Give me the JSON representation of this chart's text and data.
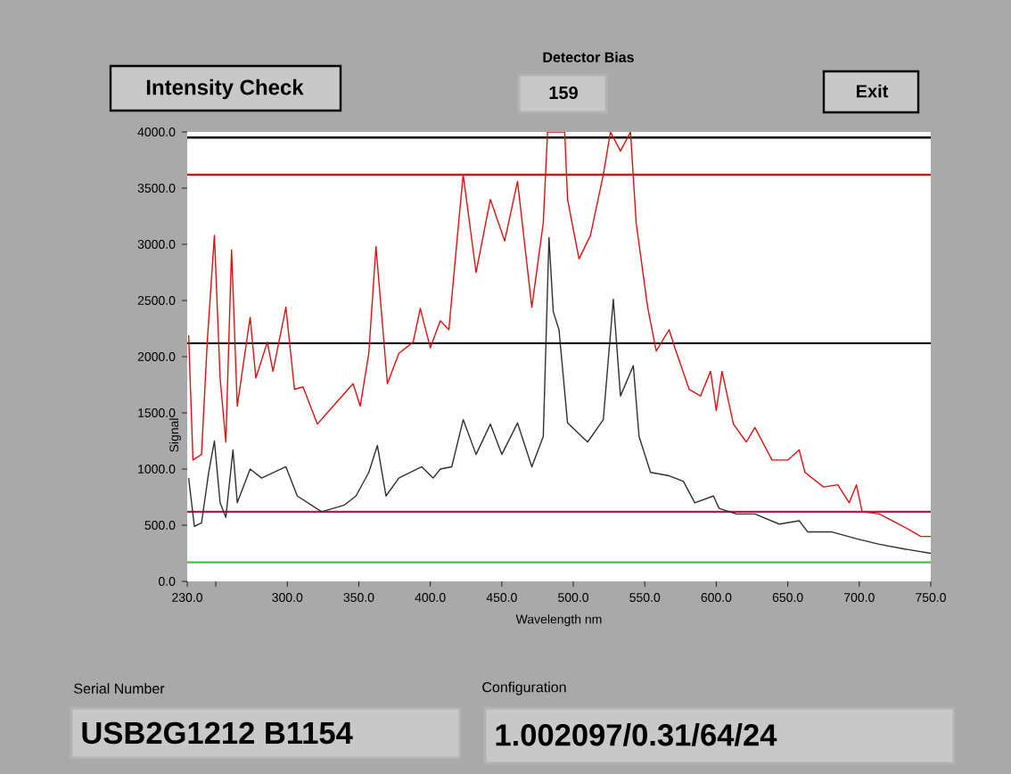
{
  "chart_data": {
    "type": "line",
    "xlabel": "Wavelength nm",
    "ylabel": "Signal",
    "xlim": [
      230,
      750
    ],
    "ylim": [
      0,
      4000
    ],
    "xticks": [
      {
        "value": 230,
        "label": "230.0"
      },
      {
        "value": 250,
        "label": null
      },
      {
        "value": 300,
        "label": "300.0"
      },
      {
        "value": 350,
        "label": "350.0"
      },
      {
        "value": 400,
        "label": "400.0"
      },
      {
        "value": 450,
        "label": "450.0"
      },
      {
        "value": 500,
        "label": "500.0"
      },
      {
        "value": 550,
        "label": "550.0"
      },
      {
        "value": 600,
        "label": "600.0"
      },
      {
        "value": 650,
        "label": "650.0"
      },
      {
        "value": 700,
        "label": "700.0"
      },
      {
        "value": 750,
        "label": "750.0"
      }
    ],
    "yticks": [
      {
        "value": 0,
        "label": "0.0"
      },
      {
        "value": 500,
        "label": "500.0"
      },
      {
        "value": 1000,
        "label": "1000.0"
      },
      {
        "value": 1500,
        "label": "1500.0"
      },
      {
        "value": 2000,
        "label": "2000.0"
      },
      {
        "value": 2500,
        "label": "2500.0"
      },
      {
        "value": 3000,
        "label": "3000.0"
      },
      {
        "value": 3500,
        "label": "3500.0"
      },
      {
        "value": 4000,
        "label": "4000.0"
      }
    ],
    "grid": false,
    "marker": "none",
    "line_style": "solid",
    "series": [
      {
        "color": "#e01010",
        "x": [
          231,
          234,
          240,
          244,
          249,
          253,
          257,
          261,
          265,
          274,
          278,
          286,
          290,
          299,
          305,
          311,
          321,
          332,
          346,
          351,
          357,
          362,
          370,
          378,
          388,
          393,
          400,
          407,
          413,
          419,
          423,
          432,
          442,
          452,
          461,
          471,
          479,
          482,
          494,
          496,
          504,
          512,
          521,
          526,
          533,
          540,
          544,
          552,
          558,
          567,
          571,
          581,
          589,
          596,
          600,
          604,
          612,
          621,
          627,
          639,
          650,
          658,
          662,
          675,
          685,
          693,
          698,
          702,
          714,
          723,
          735,
          743,
          750
        ],
        "values": [
          2190,
          1080,
          1130,
          2130,
          3080,
          1810,
          1240,
          2950,
          1560,
          2350,
          1810,
          2130,
          1870,
          2440,
          1710,
          1730,
          1400,
          1560,
          1760,
          1560,
          2030,
          2980,
          1760,
          2030,
          2130,
          2430,
          2080,
          2320,
          2240,
          3080,
          3620,
          2750,
          3400,
          3030,
          3560,
          2440,
          3190,
          4000,
          4000,
          3400,
          2870,
          3080,
          3620,
          4000,
          3830,
          4000,
          3190,
          2440,
          2050,
          2240,
          2080,
          1710,
          1650,
          1870,
          1520,
          1870,
          1400,
          1240,
          1370,
          1080,
          1080,
          1170,
          970,
          840,
          860,
          700,
          860,
          620,
          600,
          540,
          460,
          400,
          400
        ]
      },
      {
        "color": "#303030",
        "x": [
          231,
          235,
          240,
          245,
          249,
          253,
          257,
          262,
          265,
          274,
          282,
          299,
          307,
          324,
          340,
          348,
          357,
          363,
          369,
          378,
          394,
          402,
          407,
          415,
          423,
          432,
          442,
          450,
          461,
          471,
          479,
          483,
          486,
          490,
          496,
          510,
          521,
          528,
          533,
          542,
          546,
          554,
          567,
          577,
          585,
          598,
          602,
          614,
          627,
          644,
          658,
          664,
          681,
          698,
          714,
          731,
          750
        ],
        "values": [
          920,
          490,
          520,
          970,
          1250,
          700,
          570,
          1170,
          700,
          1000,
          920,
          1020,
          760,
          620,
          680,
          760,
          970,
          1210,
          760,
          920,
          1020,
          920,
          1000,
          1020,
          1440,
          1130,
          1400,
          1130,
          1410,
          1020,
          1290,
          3060,
          2400,
          2240,
          1410,
          1240,
          1440,
          2510,
          1650,
          1920,
          1290,
          970,
          940,
          890,
          700,
          760,
          650,
          600,
          600,
          510,
          540,
          440,
          440,
          380,
          330,
          290,
          250
        ]
      }
    ],
    "ref_lines": [
      {
        "axis": "y",
        "value": 3950,
        "color": "#000000"
      },
      {
        "axis": "y",
        "value": 3620,
        "color": "#ff0000"
      },
      {
        "axis": "y",
        "value": 2120,
        "color": "#000000"
      },
      {
        "axis": "y",
        "value": 620,
        "color": "#b01e4a"
      },
      {
        "axis": "y",
        "value": 170,
        "color": "#33cc33"
      }
    ],
    "annotations": [
      "Intensity Check",
      "Detector Bias",
      "159",
      "Exit",
      "Serial Number",
      "USB2G1212 B1154",
      "Configuration",
      "1.002097/0.31/64/24"
    ]
  }
}
